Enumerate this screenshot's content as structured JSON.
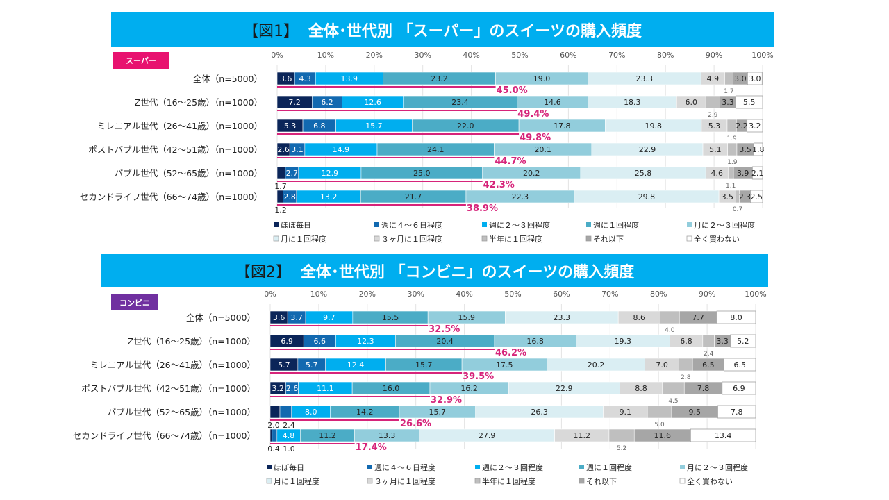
{
  "figures": [
    {
      "header_num": "【図1】",
      "header_title": "全体･世代別 「スーパー」のスイーツの購入頻度",
      "badge": "スーパー",
      "badge_color": "#E8126F"
    },
    {
      "header_num": "【図2】",
      "header_title": "全体･世代別 「コンビニ」のスイーツの購入頻度",
      "badge": "コンビニ",
      "badge_color": "#7030A0"
    }
  ],
  "colors": {
    "header_bg": "#00AEEF",
    "total_line": "#D6247A",
    "series": [
      "#0B2559",
      "#1269B0",
      "#00AEEF",
      "#4BACC6",
      "#92CDDC",
      "#DAEEF3",
      "#D9D9D9",
      "#BFBFBF",
      "#A6A6A6",
      "#FFFFFF"
    ]
  },
  "chart_data": [
    {
      "type": "bar",
      "orientation": "horizontal-stacked-100",
      "title": "全体･世代別 「スーパー」のスイーツの購入頻度",
      "xlabel": "",
      "ylabel": "",
      "xlim": [
        0,
        100
      ],
      "x_ticks": [
        "0%",
        "10%",
        "20%",
        "30%",
        "40%",
        "50%",
        "60%",
        "70%",
        "80%",
        "90%",
        "100%"
      ],
      "grid": true,
      "legend_position": "bottom",
      "categories": [
        "全体（n=5000）",
        "Z世代（16～25歳）（n=1000）",
        "ミレニアル世代（26～41歳）（n=1000）",
        "ポストバブル世代（42～51歳）（n=1000）",
        "バブル世代（52～65歳）（n=1000）",
        "セカンドライフ世代（66～74歳）（n=1000）"
      ],
      "series": [
        {
          "name": "ほぼ毎日",
          "values": [
            3.6,
            7.2,
            5.3,
            2.6,
            1.7,
            1.2
          ]
        },
        {
          "name": "週に４～６日程度",
          "values": [
            4.3,
            6.2,
            6.8,
            3.1,
            2.7,
            2.8
          ]
        },
        {
          "name": "週に２～３回程度",
          "values": [
            13.9,
            12.6,
            15.7,
            14.9,
            12.9,
            13.2
          ]
        },
        {
          "name": "週に１回程度",
          "values": [
            23.2,
            23.4,
            22.0,
            24.1,
            25.0,
            21.7
          ]
        },
        {
          "name": "月に２～３回程度",
          "values": [
            19.0,
            14.6,
            17.8,
            20.1,
            20.2,
            22.3
          ]
        },
        {
          "name": "月に１回程度",
          "values": [
            23.3,
            18.3,
            19.8,
            22.9,
            25.8,
            29.8
          ]
        },
        {
          "name": "３ヶ月に１回程度",
          "values": [
            4.9,
            6.0,
            5.3,
            5.1,
            4.6,
            3.5
          ]
        },
        {
          "name": "半年に１回程度",
          "values": [
            1.7,
            2.9,
            1.9,
            1.9,
            1.1,
            0.7
          ]
        },
        {
          "name": "それ以下",
          "values": [
            3.0,
            3.3,
            2.2,
            3.5,
            3.9,
            2.3
          ]
        },
        {
          "name": "全く買わない",
          "values": [
            3.0,
            5.5,
            3.2,
            1.8,
            2.1,
            2.5
          ]
        }
      ],
      "totals": [
        "45.0%",
        "49.4%",
        "49.8%",
        "44.7%",
        "42.3%",
        "38.9%"
      ]
    },
    {
      "type": "bar",
      "orientation": "horizontal-stacked-100",
      "title": "全体･世代別 「コンビニ」のスイーツの購入頻度",
      "xlabel": "",
      "ylabel": "",
      "xlim": [
        0,
        100
      ],
      "x_ticks": [
        "0%",
        "10%",
        "20%",
        "30%",
        "40%",
        "50%",
        "60%",
        "70%",
        "80%",
        "90%",
        "100%"
      ],
      "grid": true,
      "legend_position": "bottom",
      "categories": [
        "全体（n=5000）",
        "Z世代（16～25歳）（n=1000）",
        "ミレニアル世代（26～41歳）（n=1000）",
        "ポストバブル世代（42～51歳）（n=1000）",
        "バブル世代（52～65歳）（n=1000）",
        "セカンドライフ世代（66～74歳）（n=1000）"
      ],
      "series": [
        {
          "name": "ほぼ毎日",
          "values": [
            3.6,
            6.9,
            5.7,
            3.2,
            2.0,
            0.4
          ]
        },
        {
          "name": "週に４～６日程度",
          "values": [
            3.7,
            6.6,
            5.7,
            2.6,
            2.4,
            1.0
          ]
        },
        {
          "name": "週に２～３回程度",
          "values": [
            9.7,
            12.3,
            12.4,
            11.1,
            8.0,
            4.8
          ]
        },
        {
          "name": "週に１回程度",
          "values": [
            15.5,
            20.4,
            15.7,
            16.0,
            14.2,
            11.2
          ]
        },
        {
          "name": "月に２～３回程度",
          "values": [
            15.9,
            16.8,
            17.5,
            16.2,
            15.7,
            13.3
          ]
        },
        {
          "name": "月に１回程度",
          "values": [
            23.3,
            19.3,
            20.2,
            22.9,
            26.3,
            27.9
          ]
        },
        {
          "name": "３ヶ月に１回程度",
          "values": [
            8.6,
            6.8,
            7.0,
            8.8,
            9.1,
            11.2
          ]
        },
        {
          "name": "半年に１回程度",
          "values": [
            4.0,
            2.4,
            2.8,
            4.5,
            5.0,
            5.2
          ]
        },
        {
          "name": "それ以下",
          "values": [
            7.7,
            3.3,
            6.5,
            7.8,
            9.5,
            11.6
          ]
        },
        {
          "name": "全く買わない",
          "values": [
            8.0,
            5.2,
            6.5,
            6.9,
            7.8,
            13.4
          ]
        }
      ],
      "totals": [
        "32.5%",
        "46.2%",
        "39.5%",
        "32.9%",
        "26.6%",
        "17.4%"
      ]
    }
  ]
}
